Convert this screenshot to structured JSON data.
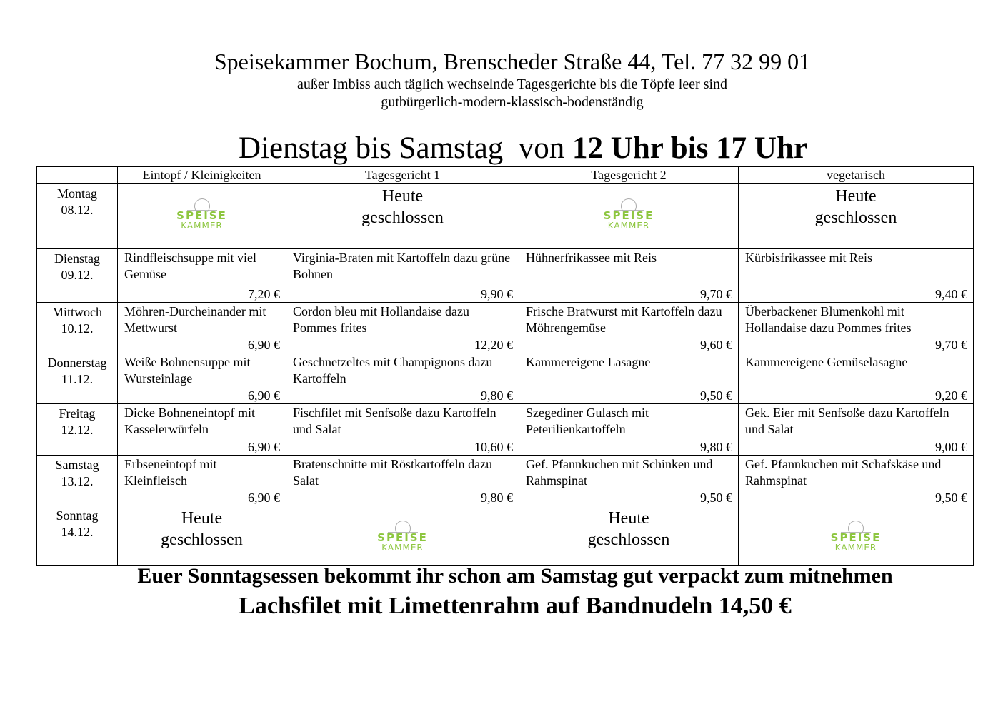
{
  "header": {
    "line1": "Speisekammer Bochum, Brenscheder Straße 44, Tel. 77 32 99 01",
    "line2": "außer Imbiss auch täglich wechselnde Tagesgerichte bis die Töpfe leer sind",
    "line3": "gutbürgerlich-modern-klassisch-bodenständig",
    "hours_prefix": "Dienstag bis Samstag  von ",
    "hours_bold": "12 Uhr bis 17 Uhr"
  },
  "logo": {
    "line1": "SPEISE",
    "line2": "KAMMER",
    "color": "#8dc63f"
  },
  "columns": [
    "",
    "Eintopf  /  Kleinigkeiten",
    "Tagesgericht 1",
    "Tagesgericht 2",
    "vegetarisch"
  ],
  "closed": {
    "line1": "Heute",
    "line2": "geschlossen"
  },
  "rows": [
    {
      "day": "Dienstag",
      "date": "09.12.",
      "cells": [
        {
          "dish": "Rindfleischsuppe mit viel Gemüse",
          "price": "7,20 €"
        },
        {
          "dish": "Virginia-Braten mit Kartoffeln dazu grüne Bohnen",
          "price": "9,90 €"
        },
        {
          "dish": "Hühnerfrikassee mit Reis",
          "price": "9,70 €"
        },
        {
          "dish": "Kürbisfrikassee mit Reis",
          "price": "9,40 €"
        }
      ]
    },
    {
      "day": "Mittwoch",
      "date": "10.12.",
      "cells": [
        {
          "dish": "Möhren-Durcheinander mit Mettwurst",
          "price": "6,90 €"
        },
        {
          "dish": "Cordon bleu mit Hollandaise dazu Pommes frites",
          "price": "12,20 €"
        },
        {
          "dish": "Frische Bratwurst  mit Kartoffeln dazu Möhrengemüse",
          "price": "9,60 €"
        },
        {
          "dish": "Überbackener Blumenkohl mit Hollandaise dazu Pommes frites",
          "price": "9,70 €"
        }
      ]
    },
    {
      "day": "Donnerstag",
      "date": "11.12.",
      "cells": [
        {
          "dish": "Weiße Bohnensuppe mit Wursteinlage",
          "price": "6,90 €"
        },
        {
          "dish": "Geschnetzeltes mit Champignons dazu Kartoffeln",
          "price": "9,80 €"
        },
        {
          "dish": "Kammereigene Lasagne",
          "price": "9,50 €"
        },
        {
          "dish": "Kammereigene Gemüselasagne",
          "price": "9,20 €"
        }
      ]
    },
    {
      "day": "Freitag",
      "date": "12.12.",
      "cells": [
        {
          "dish": "Dicke Bohneneintopf mit Kasselerwürfeln",
          "price": "6,90 €"
        },
        {
          "dish": "Fischfilet mit Senfsoße dazu Kartoffeln und Salat",
          "price": "10,60 €"
        },
        {
          "dish": "Szegediner Gulasch mit Peterilienkartoffeln",
          "price": "9,80 €"
        },
        {
          "dish": "Gek. Eier mit Senfsoße dazu Kartoffeln und Salat",
          "price": "9,00 €"
        }
      ]
    },
    {
      "day": "Samstag",
      "date": "13.12.",
      "cells": [
        {
          "dish": "Erbseneintopf mit Kleinfleisch",
          "price": "6,90 €"
        },
        {
          "dish": "Bratenschnitte mit Röstkartoffeln dazu Salat",
          "price": "9,80 €"
        },
        {
          "dish": "Gef. Pfannkuchen mit Schinken und Rahmspinat",
          "price": "9,50 €"
        },
        {
          "dish": "Gef. Pfannkuchen mit Schafskäse und Rahmspinat",
          "price": "9,50 €"
        }
      ]
    }
  ],
  "monday": {
    "day": "Montag",
    "date": "08.12."
  },
  "sunday": {
    "day": "Sonntag",
    "date": "14.12."
  },
  "footer": {
    "line1": "Euer Sonntagsessen bekommt ihr schon am Samstag gut verpackt zum mitnehmen",
    "line2": "Lachsfilet mit Limettenrahm auf Bandnudeln 14,50 €"
  }
}
